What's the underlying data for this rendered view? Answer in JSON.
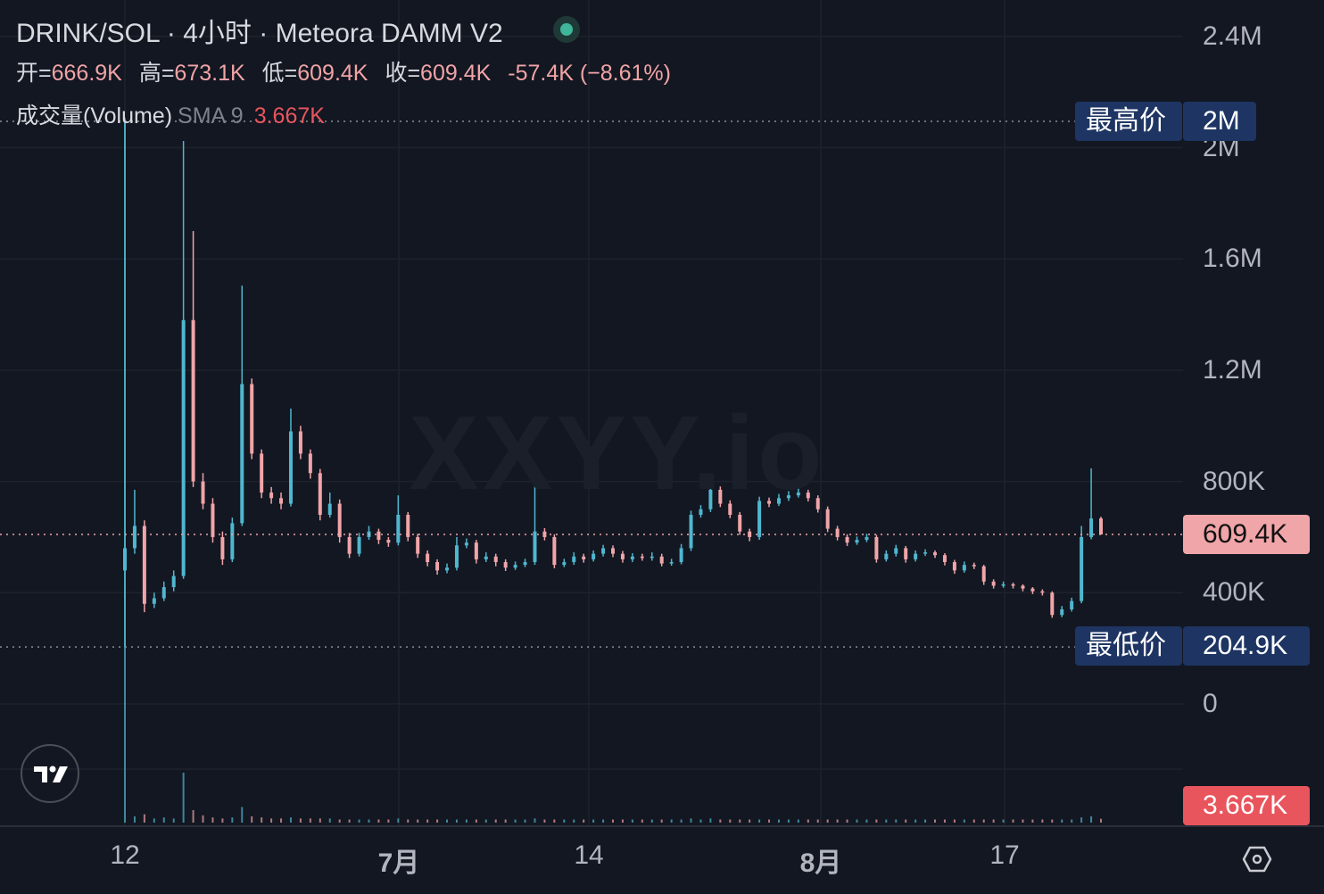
{
  "header": {
    "title": "DRINK/SOL · 4小时 · Meteora DAMM V2",
    "status_dot_color": "#3fb59a",
    "ohlc": [
      {
        "label": "开=",
        "value": "666.9K"
      },
      {
        "label": "高=",
        "value": "673.1K"
      },
      {
        "label": "低=",
        "value": "609.4K"
      },
      {
        "label": "收=",
        "value": "609.4K"
      }
    ],
    "change": "-57.4K (−8.61%)",
    "volume_label": "成交量(Volume)",
    "volume_sma": "SMA 9",
    "volume_value": "3.667K"
  },
  "watermark": "XXYY.io",
  "badges": {
    "high_label": "最高价",
    "high_value": "2M",
    "low_label": "最低价",
    "low_value": "204.9K",
    "last_price": "609.4K",
    "last_volume": "3.667K"
  },
  "colors": {
    "up": "#4fb7cf",
    "down": "#f0a5a8",
    "background": "#131722",
    "grid": "#1e222d",
    "badge_blue": "#1e3563",
    "last_price_badge": "#f0a5a8",
    "volume_badge": "#e8555d"
  },
  "chart_data": {
    "type": "candlestick",
    "interval": "4小时",
    "y_unit": "K",
    "ylim": [
      0,
      2400
    ],
    "y_ticks": [
      "2.4M",
      "2M",
      "1.6M",
      "1.2M",
      "800K",
      "400K",
      "0"
    ],
    "y_tick_values": [
      2400,
      2000,
      1600,
      1200,
      800,
      400,
      0
    ],
    "x_ticks": [
      "12",
      "7月",
      "14",
      "8月",
      "17"
    ],
    "x_tick_candle_index": [
      0,
      28,
      48,
      71,
      90
    ],
    "grid": true,
    "highest": 2098,
    "lowest": 204.9,
    "last_close": 609.4,
    "candles_ohlc": [
      [
        480,
        2098,
        204.9,
        560
      ],
      [
        560,
        770,
        540,
        640
      ],
      [
        640,
        660,
        330,
        360
      ],
      [
        360,
        400,
        345,
        380
      ],
      [
        380,
        440,
        370,
        420
      ],
      [
        420,
        480,
        405,
        460
      ],
      [
        460,
        2024,
        450,
        1380
      ],
      [
        1380,
        1700,
        780,
        800
      ],
      [
        800,
        830,
        700,
        720
      ],
      [
        720,
        740,
        580,
        600
      ],
      [
        600,
        620,
        500,
        520
      ],
      [
        520,
        670,
        510,
        650
      ],
      [
        650,
        1504,
        640,
        1150
      ],
      [
        1150,
        1170,
        880,
        900
      ],
      [
        900,
        915,
        740,
        760
      ],
      [
        760,
        780,
        720,
        740
      ],
      [
        740,
        760,
        700,
        720
      ],
      [
        720,
        1062,
        710,
        980
      ],
      [
        980,
        1000,
        880,
        900
      ],
      [
        900,
        915,
        810,
        830
      ],
      [
        830,
        845,
        660,
        680
      ],
      [
        680,
        760,
        670,
        720
      ],
      [
        720,
        735,
        580,
        600
      ],
      [
        600,
        615,
        525,
        540
      ],
      [
        540,
        615,
        530,
        600
      ],
      [
        600,
        640,
        590,
        620
      ],
      [
        620,
        630,
        575,
        590
      ],
      [
        590,
        600,
        565,
        580
      ],
      [
        580,
        750,
        570,
        680
      ],
      [
        680,
        690,
        585,
        600
      ],
      [
        600,
        612,
        525,
        540
      ],
      [
        540,
        552,
        495,
        510
      ],
      [
        510,
        520,
        465,
        480
      ],
      [
        480,
        505,
        470,
        490
      ],
      [
        490,
        600,
        480,
        570
      ],
      [
        570,
        595,
        560,
        580
      ],
      [
        580,
        590,
        505,
        520
      ],
      [
        520,
        545,
        510,
        530
      ],
      [
        530,
        540,
        495,
        510
      ],
      [
        510,
        520,
        478,
        490
      ],
      [
        490,
        512,
        482,
        500
      ],
      [
        500,
        522,
        492,
        510
      ],
      [
        510,
        830,
        500,
        620
      ],
      [
        620,
        632,
        588,
        600
      ],
      [
        600,
        610,
        488,
        500
      ],
      [
        500,
        522,
        492,
        510
      ],
      [
        510,
        545,
        500,
        530
      ],
      [
        530,
        540,
        508,
        520
      ],
      [
        520,
        552,
        512,
        540
      ],
      [
        540,
        572,
        530,
        560
      ],
      [
        560,
        570,
        528,
        540
      ],
      [
        540,
        550,
        508,
        520
      ],
      [
        520,
        542,
        510,
        530
      ],
      [
        530,
        540,
        515,
        525
      ],
      [
        525,
        545,
        515,
        530
      ],
      [
        530,
        540,
        495,
        505
      ],
      [
        505,
        522,
        497,
        510
      ],
      [
        510,
        575,
        502,
        560
      ],
      [
        560,
        695,
        550,
        680
      ],
      [
        680,
        715,
        670,
        700
      ],
      [
        700,
        815,
        690,
        770
      ],
      [
        770,
        782,
        708,
        720
      ],
      [
        720,
        732,
        668,
        680
      ],
      [
        680,
        690,
        608,
        620
      ],
      [
        620,
        630,
        585,
        600
      ],
      [
        600,
        745,
        590,
        730
      ],
      [
        730,
        742,
        708,
        720
      ],
      [
        720,
        755,
        712,
        740
      ],
      [
        740,
        765,
        730,
        750
      ],
      [
        750,
        775,
        742,
        760
      ],
      [
        760,
        770,
        728,
        740
      ],
      [
        740,
        750,
        688,
        700
      ],
      [
        700,
        710,
        618,
        630
      ],
      [
        630,
        640,
        588,
        600
      ],
      [
        600,
        610,
        568,
        580
      ],
      [
        580,
        602,
        572,
        590
      ],
      [
        590,
        612,
        582,
        600
      ],
      [
        600,
        608,
        508,
        520
      ],
      [
        520,
        552,
        512,
        540
      ],
      [
        540,
        572,
        530,
        560
      ],
      [
        560,
        568,
        508,
        520
      ],
      [
        520,
        552,
        512,
        540
      ],
      [
        540,
        556,
        532,
        545
      ],
      [
        545,
        552,
        525,
        535
      ],
      [
        535,
        542,
        498,
        510
      ],
      [
        510,
        518,
        468,
        480
      ],
      [
        480,
        512,
        472,
        500
      ],
      [
        500,
        508,
        485,
        495
      ],
      [
        495,
        500,
        428,
        440
      ],
      [
        440,
        448,
        415,
        425
      ],
      [
        425,
        440,
        418,
        430
      ],
      [
        430,
        436,
        415,
        425
      ],
      [
        425,
        430,
        405,
        415
      ],
      [
        415,
        420,
        395,
        405
      ],
      [
        405,
        412,
        390,
        400
      ],
      [
        400,
        405,
        310,
        320
      ],
      [
        320,
        352,
        312,
        340
      ],
      [
        340,
        382,
        332,
        370
      ],
      [
        370,
        640,
        362,
        600
      ],
      [
        600,
        847,
        592,
        666.9
      ],
      [
        666.9,
        673.1,
        609.4,
        609.4
      ]
    ],
    "volume_k": [
      60,
      6,
      8,
      4,
      5,
      4,
      48,
      12,
      7,
      5,
      4,
      5,
      15,
      6,
      5,
      4,
      4,
      5,
      4,
      4,
      4,
      4,
      3,
      3,
      3,
      3,
      3,
      3,
      4,
      3,
      3,
      3,
      3,
      3,
      3,
      3,
      3,
      3,
      3,
      3,
      3,
      3,
      4,
      3,
      3,
      3,
      3,
      3,
      3,
      3,
      3,
      3,
      3,
      3,
      3,
      3,
      3,
      3,
      4,
      3,
      4,
      3,
      3,
      3,
      3,
      3,
      3,
      3,
      3,
      3,
      3,
      3,
      3,
      3,
      3,
      3,
      3,
      3,
      3,
      3,
      3,
      3,
      3,
      3,
      3,
      3,
      3,
      3,
      3,
      3,
      3,
      3,
      3,
      3,
      3,
      3,
      3,
      3,
      5,
      6,
      3.667
    ]
  },
  "time_axis": {
    "settings_icon": "gear-hex-icon"
  }
}
